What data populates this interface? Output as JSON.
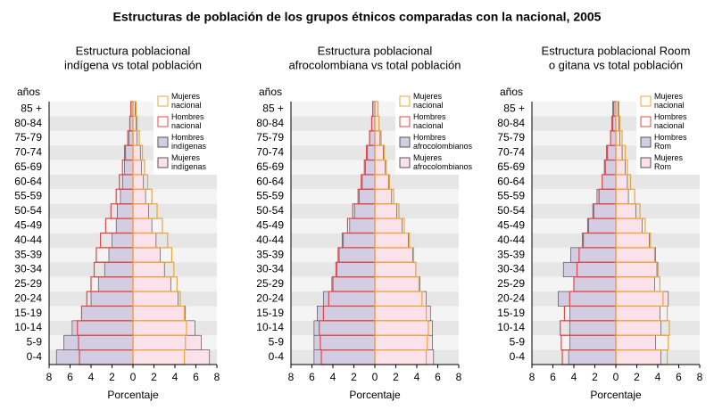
{
  "title": "Estructuras de población de los grupos étnicos comparadas con la nacional, 2005",
  "chart_data": [
    {
      "type": "pyramid",
      "subtitle": [
        "Estructura poblacional",
        "indígena vs total población"
      ],
      "ylabel": "años",
      "xlabel": "Porcentaje",
      "categories": [
        "0-4",
        "5-9",
        "10-14",
        "15-19",
        "20-24",
        "25-29",
        "30-34",
        "35-39",
        "40-44",
        "45-49",
        "50-54",
        "55-59",
        "60-64",
        "65-69",
        "70-74",
        "75-79",
        "80-84",
        "85 +"
      ],
      "xlim": [
        -8,
        8
      ],
      "xticks": [
        {
          "value": -8,
          "label": "8"
        },
        {
          "value": -6,
          "label": "6"
        },
        {
          "value": -4,
          "label": "4"
        },
        {
          "value": -2,
          "label": "2"
        },
        0,
        2,
        4,
        6,
        8
      ],
      "legend": "upper right",
      "series": [
        {
          "name": "Hombres indígenas",
          "color": "#d3cde3",
          "filled": true,
          "values": [
            -7.3,
            -6.6,
            -5.8,
            -4.9,
            -4.0,
            -3.3,
            -2.7,
            -2.3,
            -2.0,
            -1.6,
            -1.5,
            -1.2,
            -1.0,
            -0.8,
            -0.7,
            -0.4,
            -0.3,
            -0.2
          ]
        },
        {
          "name": "Mujeres indígenas",
          "color": "#fbe1ea",
          "filled": true,
          "values": [
            7.3,
            6.5,
            5.9,
            5.0,
            4.3,
            3.6,
            3.0,
            2.6,
            2.2,
            1.8,
            1.5,
            1.2,
            1.0,
            0.8,
            0.7,
            0.4,
            0.3,
            0.2
          ]
        },
        {
          "name": "Hombres nacional",
          "color": "#e04848",
          "filled": false,
          "values": [
            -5.1,
            -5.2,
            -5.3,
            -4.9,
            -4.4,
            -4.0,
            -3.7,
            -3.5,
            -3.1,
            -2.6,
            -2.1,
            -1.6,
            -1.3,
            -1.0,
            -0.8,
            -0.5,
            -0.3,
            -0.2
          ]
        },
        {
          "name": "Mujeres nacional",
          "color": "#eba53e",
          "filled": false,
          "values": [
            4.9,
            5.0,
            5.1,
            4.9,
            4.5,
            4.2,
            3.9,
            3.7,
            3.3,
            2.8,
            2.3,
            1.8,
            1.4,
            1.1,
            0.9,
            0.6,
            0.4,
            0.3
          ]
        }
      ]
    },
    {
      "type": "pyramid",
      "subtitle": [
        "Estructura poblacional",
        "afrocolombiana vs total población"
      ],
      "ylabel": "años",
      "xlabel": "Porcentaje",
      "categories": [
        "0-4",
        "5-9",
        "10-14",
        "15-19",
        "20-24",
        "25-29",
        "30-34",
        "35-39",
        "40-44",
        "45-49",
        "50-54",
        "55-59",
        "60-64",
        "65-69",
        "70-74",
        "75-79",
        "80-84",
        "85 +"
      ],
      "xlim": [
        -8,
        8
      ],
      "xticks": [
        {
          "value": -8,
          "label": "8"
        },
        {
          "value": -6,
          "label": "6"
        },
        {
          "value": -4,
          "label": "4"
        },
        {
          "value": -2,
          "label": "2"
        },
        0,
        2,
        4,
        6,
        8
      ],
      "legend": "upper right",
      "series": [
        {
          "name": "Hombres afrocolombianos",
          "color": "#d3cde3",
          "filled": true,
          "values": [
            -5.8,
            -5.8,
            -5.8,
            -5.5,
            -4.9,
            -4.1,
            -3.6,
            -3.4,
            -3.0,
            -2.4,
            -1.9,
            -1.5,
            -1.2,
            -0.9,
            -0.7,
            -0.5,
            -0.3,
            -0.2
          ]
        },
        {
          "name": "Mujeres afrocolombianos",
          "color": "#fbe1ea",
          "filled": true,
          "values": [
            5.6,
            5.5,
            5.5,
            5.3,
            4.9,
            4.3,
            3.9,
            3.6,
            3.2,
            2.6,
            2.1,
            1.6,
            1.3,
            1.0,
            0.8,
            0.5,
            0.4,
            0.3
          ]
        },
        {
          "name": "Hombres nacional",
          "color": "#e04848",
          "filled": false,
          "values": [
            -5.1,
            -5.2,
            -5.3,
            -4.9,
            -4.4,
            -4.0,
            -3.7,
            -3.5,
            -3.1,
            -2.6,
            -2.1,
            -1.6,
            -1.3,
            -1.0,
            -0.8,
            -0.5,
            -0.3,
            -0.2
          ]
        },
        {
          "name": "Mujeres nacional",
          "color": "#eba53e",
          "filled": false,
          "values": [
            4.9,
            5.0,
            5.1,
            4.9,
            4.5,
            4.2,
            3.9,
            3.7,
            3.3,
            2.8,
            2.3,
            1.8,
            1.4,
            1.1,
            0.9,
            0.6,
            0.4,
            0.3
          ]
        }
      ]
    },
    {
      "type": "pyramid",
      "subtitle": [
        "Estructura poblacional Room",
        "o gitana vs total población"
      ],
      "ylabel": "años",
      "xlabel": "Porcentaje",
      "categories": [
        "0-4",
        "5-9",
        "10-14",
        "15-19",
        "20-24",
        "25-29",
        "30-34",
        "35-39",
        "40-44",
        "45-49",
        "50-54",
        "55-59",
        "60-64",
        "65-69",
        "70-74",
        "75-79",
        "80-84",
        "85 +"
      ],
      "xlim": [
        -8,
        8
      ],
      "xticks": [
        {
          "value": -8,
          "label": "8"
        },
        {
          "value": -6,
          "label": "6"
        },
        {
          "value": -4,
          "label": "4"
        },
        {
          "value": -2,
          "label": "2"
        },
        0,
        2,
        4,
        6,
        8
      ],
      "legend": "upper right",
      "series": [
        {
          "name": "Hombres Rom",
          "color": "#d3cde3",
          "filled": true,
          "values": [
            -4.5,
            -4.4,
            -4.4,
            -4.4,
            -5.5,
            -4.0,
            -5.0,
            -4.3,
            -3.2,
            -2.7,
            -2.2,
            -1.8,
            -1.3,
            -1.1,
            -0.9,
            -0.5,
            -0.4,
            -0.3
          ]
        },
        {
          "name": "Mujeres Rom",
          "color": "#fbe1ea",
          "filled": true,
          "values": [
            4.3,
            3.8,
            4.3,
            4.2,
            5.0,
            3.7,
            4.0,
            3.8,
            3.2,
            2.5,
            1.9,
            1.2,
            1.1,
            0.9,
            0.6,
            0.4,
            0.3,
            0.2
          ]
        },
        {
          "name": "Hombres nacional",
          "color": "#e04848",
          "filled": false,
          "values": [
            -5.1,
            -5.2,
            -5.3,
            -4.9,
            -4.4,
            -4.0,
            -3.7,
            -3.5,
            -3.1,
            -2.6,
            -2.1,
            -1.6,
            -1.3,
            -1.0,
            -0.8,
            -0.5,
            -0.3,
            -0.2
          ]
        },
        {
          "name": "Mujeres nacional",
          "color": "#eba53e",
          "filled": false,
          "values": [
            4.9,
            5.0,
            5.1,
            4.9,
            4.5,
            4.2,
            3.9,
            3.7,
            3.3,
            2.8,
            2.3,
            1.8,
            1.4,
            1.1,
            0.9,
            0.6,
            0.4,
            0.3
          ]
        }
      ]
    }
  ]
}
